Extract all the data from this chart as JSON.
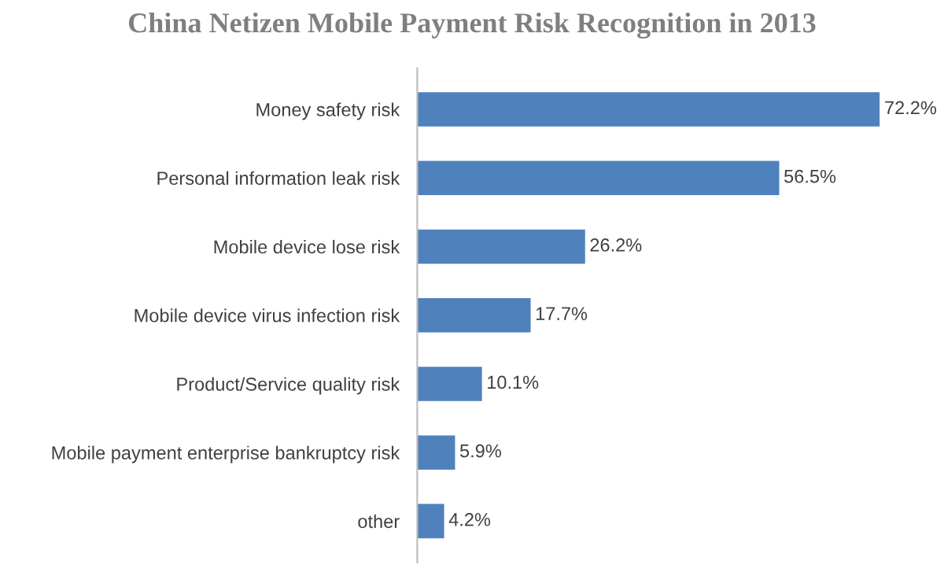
{
  "chart_data": {
    "type": "bar",
    "orientation": "horizontal",
    "title": "China Netizen Mobile Payment Risk Recognition in 2013",
    "categories": [
      "Money safety risk",
      "Personal information leak risk",
      "Mobile device lose risk",
      "Mobile device virus infection risk",
      "Product/Service quality risk",
      "Mobile payment enterprise bankruptcy risk",
      "other"
    ],
    "values": [
      72.2,
      56.5,
      26.2,
      17.7,
      10.1,
      5.9,
      4.2
    ],
    "value_labels": [
      "72.2%",
      "56.5%",
      "26.2%",
      "17.7%",
      "10.1%",
      "5.9%",
      "4.2%"
    ],
    "color": "#4f81bd",
    "grid": false,
    "legend": false
  }
}
